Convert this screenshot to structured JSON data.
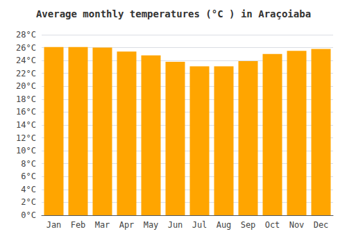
{
  "chart_data": {
    "type": "bar",
    "title": "Average monthly temperatures (°C ) in Araçoiaba",
    "categories": [
      "Jan",
      "Feb",
      "Mar",
      "Apr",
      "May",
      "Jun",
      "Jul",
      "Aug",
      "Sep",
      "Oct",
      "Nov",
      "Dec"
    ],
    "values": [
      26.1,
      26.1,
      26.0,
      25.4,
      24.8,
      23.8,
      23.1,
      23.1,
      23.9,
      25.0,
      25.5,
      25.8
    ],
    "color": "#FFA500",
    "ylim": [
      0,
      28
    ],
    "yticks": [
      {
        "value": 0,
        "label": "0°C"
      },
      {
        "value": 2,
        "label": "2°C"
      },
      {
        "value": 4,
        "label": "4°C"
      },
      {
        "value": 6,
        "label": "6°C"
      },
      {
        "value": 8,
        "label": "8°C"
      },
      {
        "value": 10,
        "label": "10°C"
      },
      {
        "value": 12,
        "label": "12°C"
      },
      {
        "value": 14,
        "label": "14°C"
      },
      {
        "value": 16,
        "label": "16°C"
      },
      {
        "value": 18,
        "label": "18°C"
      },
      {
        "value": 20,
        "label": "20°C"
      },
      {
        "value": 22,
        "label": "22°C"
      },
      {
        "value": 24,
        "label": "24°C"
      },
      {
        "value": 26,
        "label": "26°C"
      },
      {
        "value": 28,
        "label": "28°C"
      }
    ],
    "grid": true
  }
}
